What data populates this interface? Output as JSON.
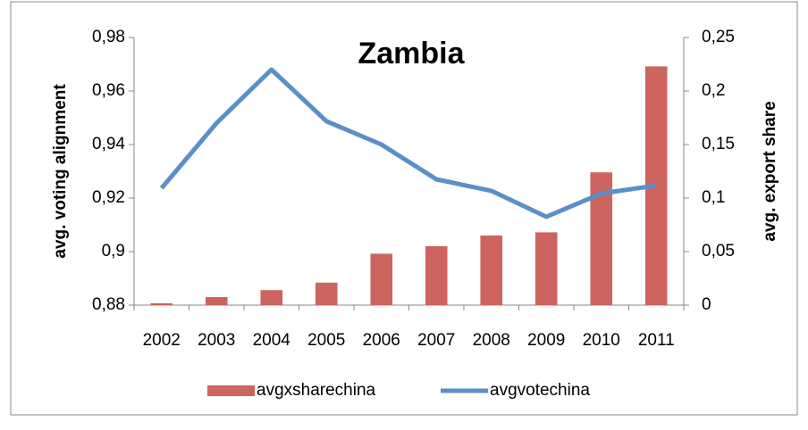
{
  "chart_data": {
    "type": "bar",
    "title": "Zambia",
    "ylabel": "avg. voting alignment",
    "y2label": "avg. export share",
    "categories": [
      "2002",
      "2003",
      "2004",
      "2005",
      "2006",
      "2007",
      "2008",
      "2009",
      "2010",
      "2011"
    ],
    "series": [
      {
        "name": "avgxsharechina",
        "type": "bar",
        "axis": "y2",
        "color": "#cd645f",
        "values": [
          0.0017,
          0.0075,
          0.014,
          0.021,
          0.048,
          0.055,
          0.065,
          0.068,
          0.124,
          0.223
        ]
      },
      {
        "name": "avgvotechina",
        "type": "line",
        "axis": "y",
        "color": "#5b8fc9",
        "values": [
          0.9237,
          0.948,
          0.968,
          0.9487,
          0.94,
          0.927,
          0.9227,
          0.913,
          0.9217,
          0.9247
        ]
      }
    ],
    "ylim": [
      0.88,
      0.98
    ],
    "yticks": [
      {
        "value": 0.88,
        "label": "0,88"
      },
      {
        "value": 0.9,
        "label": "0,9"
      },
      {
        "value": 0.92,
        "label": "0,92"
      },
      {
        "value": 0.94,
        "label": "0,94"
      },
      {
        "value": 0.96,
        "label": "0,96"
      },
      {
        "value": 0.98,
        "label": "0,98"
      }
    ],
    "y2lim": [
      0,
      0.25
    ],
    "y2ticks": [
      0,
      {
        "value": 0.05,
        "label": "0,05"
      },
      {
        "value": 0.1,
        "label": "0,1"
      },
      {
        "value": 0.15,
        "label": "0,15"
      },
      {
        "value": 0.2,
        "label": "0,2"
      },
      {
        "value": 0.25,
        "label": "0,25"
      }
    ],
    "legend": "bottom"
  }
}
